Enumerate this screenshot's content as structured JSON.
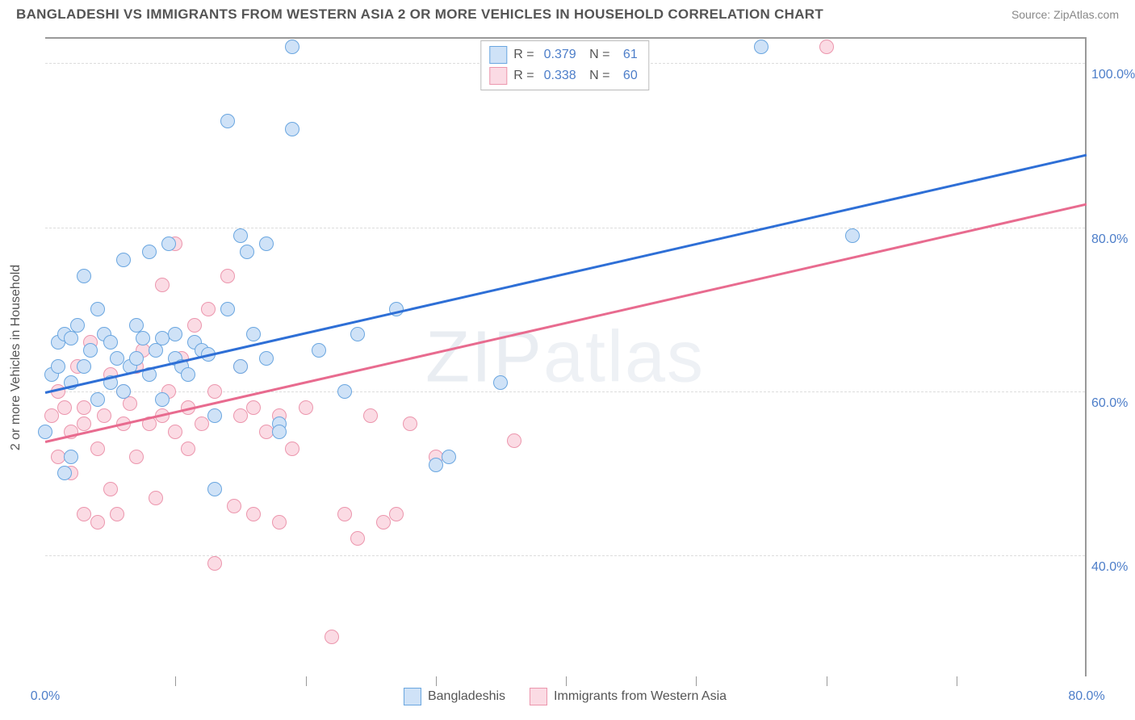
{
  "header": {
    "title": "BANGLADESHI VS IMMIGRANTS FROM WESTERN ASIA 2 OR MORE VEHICLES IN HOUSEHOLD CORRELATION CHART",
    "source": "Source: ZipAtlas.com"
  },
  "watermark": {
    "text_a": "ZIP",
    "text_b": "atlas"
  },
  "chart": {
    "type": "scatter",
    "y_title": "2 or more Vehicles in Household",
    "xlim": [
      0,
      80
    ],
    "ylim": [
      25,
      103
    ],
    "background_color": "#ffffff",
    "grid_color": "#dddddd",
    "axis_color": "#999999",
    "y_ticks": [
      {
        "v": 40,
        "label": "40.0%"
      },
      {
        "v": 60,
        "label": "60.0%"
      },
      {
        "v": 80,
        "label": "80.0%"
      },
      {
        "v": 100,
        "label": "100.0%"
      }
    ],
    "x_ticks_minor": [
      10,
      20,
      30,
      40,
      50,
      60,
      70
    ],
    "x_ticks_labeled": [
      {
        "v": 0,
        "label": "0.0%"
      },
      {
        "v": 80,
        "label": "80.0%"
      }
    ],
    "marker_radius": 9,
    "marker_border_width": 1.5,
    "series": [
      {
        "id": "bangladeshis",
        "label": "Bangladeshis",
        "fill": "#cfe2f7",
        "stroke": "#6aa6e0",
        "line_color": "#2e6fd6",
        "r": "0.379",
        "n": "61",
        "trend": {
          "x1": 0,
          "y1": 60,
          "x2": 80,
          "y2": 89
        },
        "points": [
          [
            0,
            55
          ],
          [
            0.5,
            62
          ],
          [
            1,
            66
          ],
          [
            1,
            63
          ],
          [
            1.5,
            50
          ],
          [
            1.5,
            67
          ],
          [
            2,
            61
          ],
          [
            2,
            66.5
          ],
          [
            2,
            52
          ],
          [
            2.5,
            68
          ],
          [
            3,
            63
          ],
          [
            3,
            74
          ],
          [
            3.5,
            65
          ],
          [
            4,
            59
          ],
          [
            4,
            70
          ],
          [
            4.5,
            67
          ],
          [
            5,
            61
          ],
          [
            5,
            66
          ],
          [
            5.5,
            64
          ],
          [
            6,
            60
          ],
          [
            6,
            76
          ],
          [
            6.5,
            63
          ],
          [
            7,
            68
          ],
          [
            7,
            64
          ],
          [
            7.5,
            66.5
          ],
          [
            8,
            62
          ],
          [
            8,
            77
          ],
          [
            8.5,
            65
          ],
          [
            9,
            66.5
          ],
          [
            9,
            59
          ],
          [
            9.5,
            78
          ],
          [
            10,
            67
          ],
          [
            10,
            64
          ],
          [
            10.5,
            63
          ],
          [
            11,
            62
          ],
          [
            11.5,
            66
          ],
          [
            12,
            65
          ],
          [
            12.5,
            64.5
          ],
          [
            13,
            48
          ],
          [
            13,
            57
          ],
          [
            14,
            70
          ],
          [
            14,
            93
          ],
          [
            15,
            63
          ],
          [
            15,
            79
          ],
          [
            15.5,
            77
          ],
          [
            16,
            67
          ],
          [
            17,
            78
          ],
          [
            17,
            64
          ],
          [
            18,
            56
          ],
          [
            18,
            55
          ],
          [
            19,
            92
          ],
          [
            19,
            102
          ],
          [
            21,
            65
          ],
          [
            23,
            60
          ],
          [
            24,
            67
          ],
          [
            27,
            70
          ],
          [
            30,
            51
          ],
          [
            31,
            52
          ],
          [
            35,
            61
          ],
          [
            55,
            102
          ],
          [
            62,
            79
          ]
        ]
      },
      {
        "id": "western_asia",
        "label": "Immigrants from Western Asia",
        "fill": "#fbdbe4",
        "stroke": "#ec96ad",
        "line_color": "#e86b8f",
        "r": "0.338",
        "n": "60",
        "trend": {
          "x1": 0,
          "y1": 54,
          "x2": 80,
          "y2": 83
        },
        "points": [
          [
            0.5,
            57
          ],
          [
            1,
            52
          ],
          [
            1,
            60
          ],
          [
            1.5,
            58
          ],
          [
            2,
            55
          ],
          [
            2,
            50
          ],
          [
            2.5,
            63
          ],
          [
            3,
            56
          ],
          [
            3,
            58
          ],
          [
            3,
            45
          ],
          [
            3.5,
            66
          ],
          [
            4,
            44
          ],
          [
            4,
            53
          ],
          [
            4.5,
            57
          ],
          [
            5,
            48
          ],
          [
            5,
            62
          ],
          [
            5.5,
            45
          ],
          [
            6,
            56
          ],
          [
            6,
            60
          ],
          [
            6.5,
            58.5
          ],
          [
            7,
            52
          ],
          [
            7,
            63
          ],
          [
            7.5,
            65
          ],
          [
            8,
            56
          ],
          [
            8.5,
            47
          ],
          [
            9,
            73
          ],
          [
            9,
            57
          ],
          [
            9.5,
            60
          ],
          [
            10,
            55
          ],
          [
            10,
            78
          ],
          [
            10.5,
            64
          ],
          [
            11,
            58
          ],
          [
            11,
            53
          ],
          [
            11.5,
            68
          ],
          [
            12,
            56
          ],
          [
            12.5,
            70
          ],
          [
            13,
            39
          ],
          [
            13,
            60
          ],
          [
            14,
            74
          ],
          [
            14.5,
            46
          ],
          [
            15,
            57
          ],
          [
            15,
            63
          ],
          [
            16,
            45
          ],
          [
            16,
            58
          ],
          [
            17,
            55
          ],
          [
            18,
            44
          ],
          [
            18,
            57
          ],
          [
            19,
            53
          ],
          [
            20,
            58
          ],
          [
            22,
            30
          ],
          [
            23,
            45
          ],
          [
            24,
            42
          ],
          [
            25,
            57
          ],
          [
            26,
            44
          ],
          [
            27,
            45
          ],
          [
            28,
            56
          ],
          [
            30,
            52
          ],
          [
            36,
            54
          ],
          [
            41,
            101
          ],
          [
            60,
            102
          ]
        ]
      }
    ]
  },
  "legend_top_labels": {
    "r": "R =",
    "n": "N ="
  }
}
